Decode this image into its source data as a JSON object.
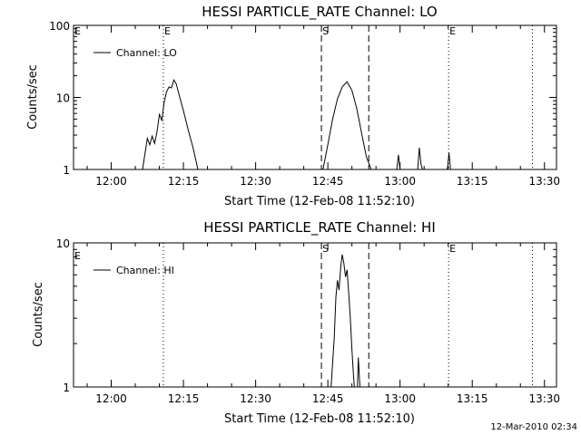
{
  "footer_timestamp": "12-Mar-2010 02:34",
  "chart_data": [
    {
      "type": "line",
      "title": "HESSI PARTICLE_RATE Channel: LO",
      "xlabel": "Start Time (12-Feb-08 11:52:10)",
      "ylabel": "Counts/sec",
      "y_scale": "log",
      "ylim": [
        1,
        100
      ],
      "yticks": [
        "1",
        "10",
        "100"
      ],
      "xlim": [
        "11:52:10",
        "13:32:30"
      ],
      "xticks": [
        "12:00",
        "12:15",
        "12:30",
        "12:45",
        "13:00",
        "13:15",
        "13:30"
      ],
      "legend": "top-left",
      "series": [
        {
          "name": "Channel: LO",
          "points": [
            [
              "12:06:30",
              1
            ],
            [
              "12:07:30",
              2.7
            ],
            [
              "12:08:00",
              2.2
            ],
            [
              "12:08:30",
              2.9
            ],
            [
              "12:09:00",
              2.3
            ],
            [
              "12:09:30",
              3.3
            ],
            [
              "12:10:00",
              5.8
            ],
            [
              "12:10:30",
              4.8
            ],
            [
              "12:11:00",
              8.7
            ],
            [
              "12:11:30",
              12
            ],
            [
              "12:12:00",
              14
            ],
            [
              "12:12:30",
              13.5
            ],
            [
              "12:13:00",
              17.5
            ],
            [
              "12:13:30",
              15.5
            ],
            [
              "12:14:00",
              11.5
            ],
            [
              "12:15:00",
              6.5
            ],
            [
              "12:16:00",
              3.5
            ],
            [
              "12:17:00",
              2
            ],
            [
              "12:18:00",
              1
            ],
            [
              "12:44:00",
              1
            ],
            [
              "12:45:00",
              2.2
            ],
            [
              "12:46:00",
              5
            ],
            [
              "12:47:00",
              9.5
            ],
            [
              "12:48:00",
              14
            ],
            [
              "12:49:00",
              16.5
            ],
            [
              "12:50:00",
              12.5
            ],
            [
              "12:51:00",
              7
            ],
            [
              "12:52:00",
              3.2
            ],
            [
              "12:53:00",
              1.5
            ],
            [
              "12:54:00",
              1
            ],
            [
              "12:59:20",
              1
            ],
            [
              "12:59:40",
              1.6
            ],
            [
              "13:00:00",
              1
            ],
            [
              "13:03:40",
              1
            ],
            [
              "13:04:00",
              2
            ],
            [
              "13:04:20",
              1.2
            ],
            [
              "13:04:40",
              1
            ],
            [
              "13:09:50",
              1
            ],
            [
              "13:10:10",
              1.7
            ],
            [
              "13:10:30",
              1
            ]
          ]
        }
      ],
      "vlines": [
        {
          "time": "12:10:50",
          "style": "dotted",
          "label": "E"
        },
        {
          "time": "12:43:40",
          "style": "dashed",
          "label": "S"
        },
        {
          "time": "12:53:30",
          "style": "dashed",
          "label": ""
        },
        {
          "time": "13:10:05",
          "style": "dotted",
          "label": "E"
        },
        {
          "time": "13:27:30",
          "style": "dotted",
          "label": ""
        }
      ],
      "corner_label": "E"
    },
    {
      "type": "line",
      "title": "HESSI PARTICLE_RATE Channel: HI",
      "xlabel": "Start Time (12-Feb-08 11:52:10)",
      "ylabel": "Counts/sec",
      "y_scale": "log",
      "ylim": [
        1,
        10
      ],
      "yticks": [
        "1",
        "10"
      ],
      "xlim": [
        "11:52:10",
        "13:32:30"
      ],
      "xticks": [
        "12:00",
        "12:15",
        "12:30",
        "12:45",
        "13:00",
        "13:15",
        "13:30"
      ],
      "legend": "top-left",
      "series": [
        {
          "name": "Channel: HI",
          "points": [
            [
              "12:45:40",
              1
            ],
            [
              "12:46:20",
              2.2
            ],
            [
              "12:46:40",
              4.2
            ],
            [
              "12:47:00",
              5.5
            ],
            [
              "12:47:20",
              4.7
            ],
            [
              "12:47:40",
              6.8
            ],
            [
              "12:48:00",
              8.3
            ],
            [
              "12:48:20",
              7.2
            ],
            [
              "12:48:40",
              5.8
            ],
            [
              "12:49:00",
              6.5
            ],
            [
              "12:49:20",
              4.5
            ],
            [
              "12:49:40",
              3
            ],
            [
              "12:50:00",
              1.8
            ],
            [
              "12:50:20",
              1.2
            ],
            [
              "12:50:30",
              1
            ],
            [
              "12:51:10",
              1
            ],
            [
              "12:51:20",
              1.6
            ],
            [
              "12:51:40",
              1
            ]
          ]
        }
      ],
      "vlines": [
        {
          "time": "12:10:50",
          "style": "dotted",
          "label": ""
        },
        {
          "time": "12:43:40",
          "style": "dashed",
          "label": "S"
        },
        {
          "time": "12:53:30",
          "style": "dashed",
          "label": ""
        },
        {
          "time": "13:10:05",
          "style": "dotted",
          "label": "E"
        },
        {
          "time": "13:27:30",
          "style": "dotted",
          "label": ""
        }
      ],
      "corner_label": "E"
    }
  ]
}
